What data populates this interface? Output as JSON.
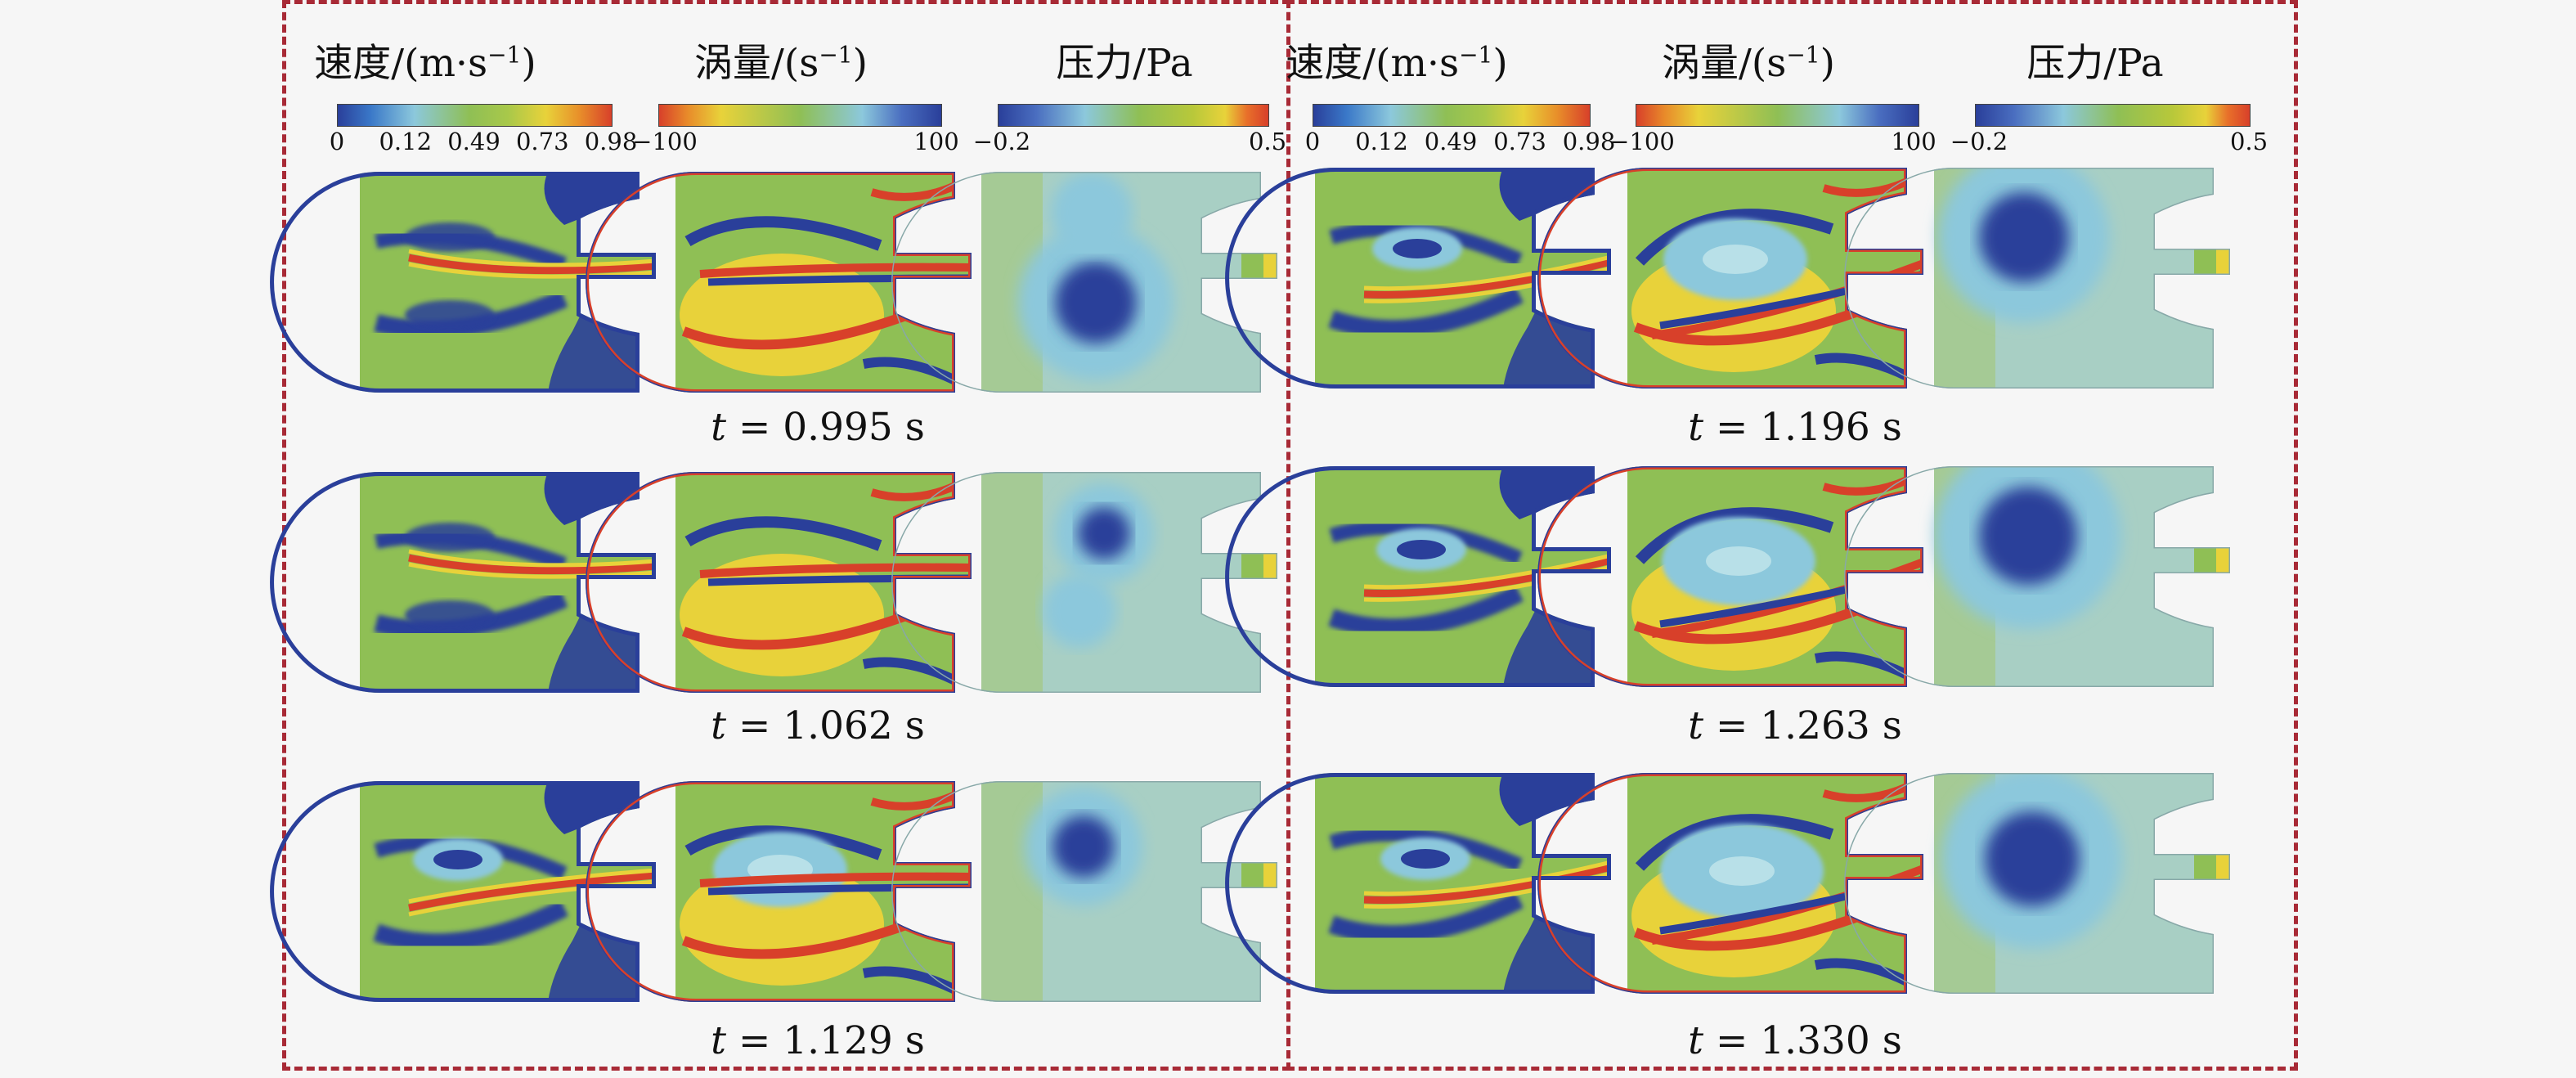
{
  "titles": {
    "speed": "速度/(m·s",
    "speed_sup": "−1",
    "speed_tail": ")",
    "vorticity": "涡量/(s",
    "vorticity_sup": "−1",
    "vorticity_tail": ")",
    "pressure": "压力/Pa"
  },
  "colorbars": {
    "speed_ticks": [
      "0",
      "0.12",
      "0.49",
      "0.73",
      "0.98"
    ],
    "vorticity_ticks": [
      "−100",
      "100"
    ],
    "pressure_ticks": [
      "−0.2",
      "0.5"
    ]
  },
  "time_prefix": "t",
  "times_left": [
    "= 0.995 s",
    "= 1.062 s",
    "= 1.129 s"
  ],
  "times_right": [
    "= 1.196 s",
    "= 1.263 s",
    "= 1.330 s"
  ],
  "colors": {
    "frame": "#a82a36",
    "blue": "#2a3f9a",
    "cyan": "#8cc8dc",
    "green": "#8fbf55",
    "yellow": "#e8d23a",
    "red": "#d8402a",
    "pale": "#a8cfc4"
  }
}
